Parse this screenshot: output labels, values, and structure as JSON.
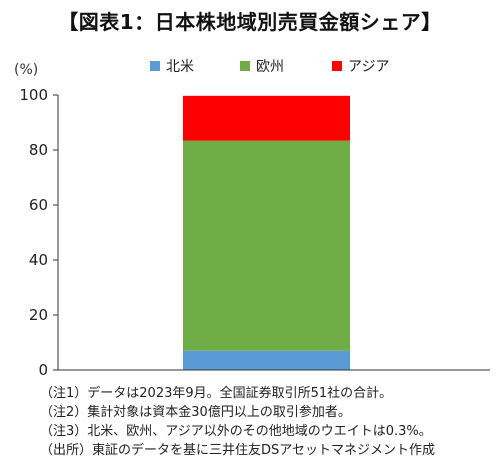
{
  "title": "【図表1：日本株地域別売買金額シェア】",
  "unit_label": "(%)",
  "colors": {
    "north_america": "#5b9bd5",
    "europe": "#70ad47",
    "asia": "#ff0000",
    "axis": "#333333"
  },
  "chart_data": {
    "type": "bar",
    "stacked": true,
    "categories": [
      ""
    ],
    "series": [
      {
        "name": "北米",
        "values": [
          7
        ]
      },
      {
        "name": "欧州",
        "values": [
          76.4
        ]
      },
      {
        "name": "アジア",
        "values": [
          16.3
        ]
      }
    ],
    "ylim": [
      0,
      100
    ],
    "yticks": [
      "0",
      "20",
      "40",
      "60",
      "80",
      "100"
    ],
    "ytick_values": [
      0,
      20,
      40,
      60,
      80,
      100
    ],
    "grid": false,
    "legend": "top"
  },
  "notes": [
    "（注1）データは2023年9月。全国証券取引所51社の合計。",
    "（注2）集計対象は資本金30億円以上の取引参加者。",
    "（注3）北米、欧州、アジア以外のその他地域のウエイトは0.3%。",
    "（出所）東証のデータを基に三井住友DSアセットマネジメント作成"
  ]
}
